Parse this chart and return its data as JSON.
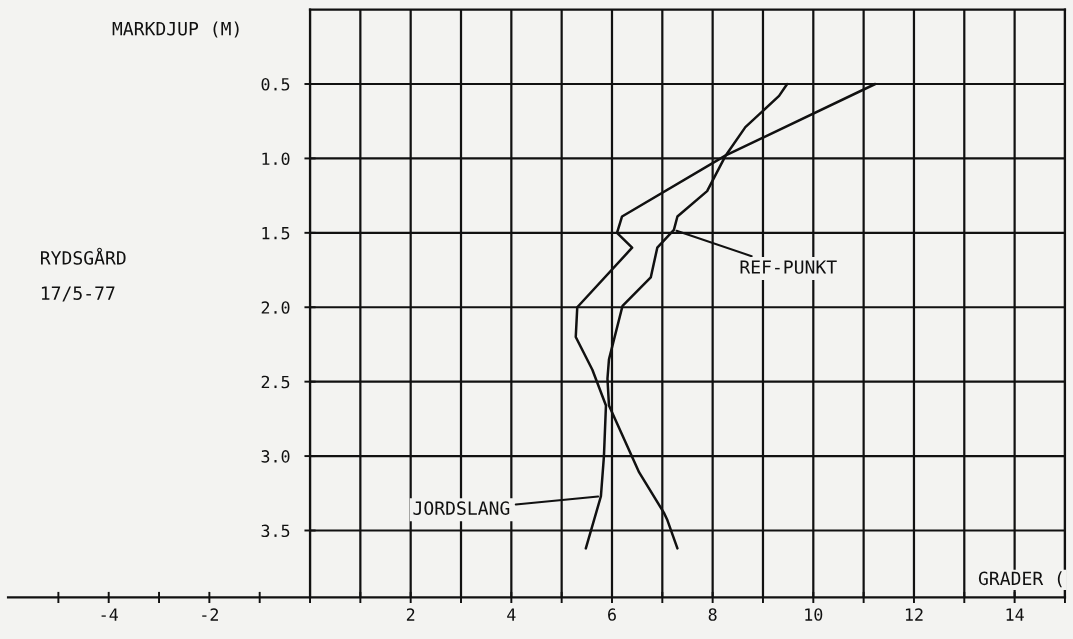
{
  "chart_data": {
    "type": "line",
    "title": "RYDSGÅRD",
    "subtitle": "17/5-77",
    "xlabel": "GRADER (",
    "ylabel": "MARKDJUP (M)",
    "series": [
      {
        "color": "#111111",
        "x": [
          11.23,
          8.26,
          6.2,
          6.1,
          6.4,
          5.31,
          5.28,
          5.61,
          5.88,
          5.84,
          5.78,
          5.48
        ],
        "values": [
          0.5,
          0.98,
          1.39,
          1.5,
          1.6,
          2.0,
          2.2,
          2.42,
          2.66,
          3.0,
          3.27,
          3.62
        ]
      },
      {
        "color": "#111111",
        "x": [
          9.48,
          9.32,
          8.65,
          8.26,
          7.89,
          7.3,
          7.23,
          6.9,
          6.77,
          6.21,
          5.94,
          5.91,
          5.94,
          6.54,
          7.03,
          7.1,
          7.3
        ],
        "values": [
          0.5,
          0.58,
          0.79,
          0.98,
          1.22,
          1.39,
          1.48,
          1.6,
          1.8,
          1.99,
          2.35,
          2.48,
          2.66,
          3.11,
          3.38,
          3.43,
          3.62
        ]
      }
    ],
    "annotations": [
      {
        "text": "REF-PUNKT",
        "x": 7.23,
        "y": 1.48
      },
      {
        "text": "JORDSLANG",
        "x": 5.78,
        "y": 3.27
      }
    ],
    "xlim": [
      -6,
      15
    ],
    "ylim": [
      3.95,
      0
    ],
    "xticks": [
      {
        "value": -5,
        "label": null
      },
      -4,
      {
        "value": -3,
        "label": null
      },
      -2,
      {
        "value": -1,
        "label": null
      },
      {
        "value": 0,
        "label": null
      },
      {
        "value": 1,
        "label": null
      },
      2,
      {
        "value": 3,
        "label": null
      },
      4,
      {
        "value": 5,
        "label": null
      },
      6,
      {
        "value": 7,
        "label": null
      },
      8,
      {
        "value": 9,
        "label": null
      },
      10,
      {
        "value": 11,
        "label": null
      },
      12,
      {
        "value": 13,
        "label": null
      },
      14,
      {
        "value": 15,
        "label": null
      }
    ],
    "yticks": [
      {
        "value": 0.5,
        "label": "0.5"
      },
      {
        "value": 1.0,
        "label": "1.0"
      },
      {
        "value": 1.5,
        "label": "1.5"
      },
      {
        "value": 2.0,
        "label": "2.0"
      },
      {
        "value": 2.5,
        "label": "2.5"
      },
      {
        "value": 3.0,
        "label": "3.0"
      },
      {
        "value": 3.5,
        "label": "3.5"
      }
    ],
    "grid": true,
    "marker": "none",
    "line_style": "solid",
    "legend": false
  }
}
